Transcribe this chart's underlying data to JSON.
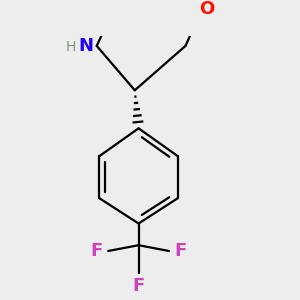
{
  "background_color": "#ededed",
  "bond_color": "#000000",
  "bond_width": 1.6,
  "O_color": "#ff1100",
  "N_color": "#2200ff",
  "F_color": "#cc44bb",
  "H_color": "#7a9a7a",
  "figsize": [
    3.0,
    3.0
  ],
  "dpi": 100,
  "xlim": [
    -1.3,
    1.3
  ],
  "ylim": [
    -2.5,
    1.1
  ]
}
